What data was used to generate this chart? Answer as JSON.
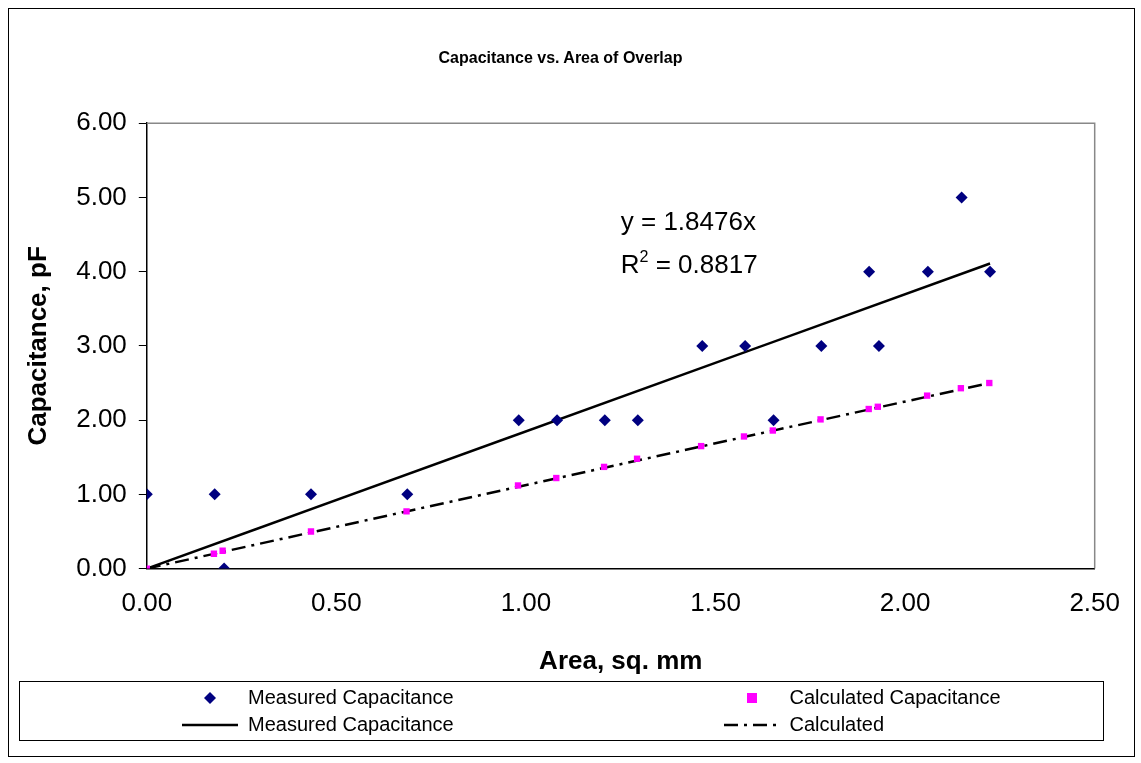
{
  "chart_data": {
    "type": "scatter",
    "title": "Capacitance vs. Area of Overlap",
    "xlabel": "Area, sq. mm",
    "ylabel": "Capacitance, pF",
    "xlim": [
      0,
      2.5
    ],
    "xticks": [
      {
        "value": 0,
        "label": "0.00"
      },
      {
        "value": 0.5,
        "label": "0.50"
      },
      {
        "value": 1,
        "label": "1.00"
      },
      {
        "value": 1.5,
        "label": "1.50"
      },
      {
        "value": 2,
        "label": "2.00"
      },
      {
        "value": 2.5,
        "label": "2.50"
      }
    ],
    "ylim": [
      0,
      6
    ],
    "yticks": [
      {
        "value": 0,
        "label": "0.00"
      },
      {
        "value": 1,
        "label": "1.00"
      },
      {
        "value": 2,
        "label": "2.00"
      },
      {
        "value": 3,
        "label": "3.00"
      },
      {
        "value": 4,
        "label": "4.00"
      },
      {
        "value": 5,
        "label": "5.00"
      },
      {
        "value": 6,
        "label": "6.00"
      }
    ],
    "grid": false,
    "legend": "bottom",
    "annotations": [
      "y = 1.8476x",
      "R$^{2}$ = 0.8817"
    ],
    "series": [
      {
        "name": "Measured Capacitance",
        "type": "scatter",
        "marker": "diamond",
        "color": "#000080",
        "x": [
          0,
          0.179,
          0.204,
          0.433,
          0.687,
          0.981,
          1.082,
          1.208,
          1.295,
          1.465,
          1.578,
          1.653,
          1.779,
          1.905,
          1.931,
          2.06,
          2.149,
          2.224
        ],
        "values": [
          1,
          1,
          0,
          1,
          1,
          2,
          2,
          2,
          2,
          3,
          3,
          2,
          3,
          4,
          3,
          4,
          5,
          4
        ]
      },
      {
        "name": "Calculated Capacitance",
        "type": "scatter",
        "marker": "square",
        "color": "#ff00ff",
        "x": [
          0,
          0.177,
          0.2,
          0.433,
          0.685,
          0.979,
          1.08,
          1.206,
          1.293,
          1.462,
          1.575,
          1.651,
          1.777,
          1.904,
          1.928,
          2.058,
          2.147,
          2.222
        ],
        "values": [
          0,
          0.2,
          0.24,
          0.5,
          0.77,
          1.12,
          1.22,
          1.37,
          1.48,
          1.65,
          1.78,
          1.86,
          2.01,
          2.15,
          2.18,
          2.33,
          2.43,
          2.5
        ]
      },
      {
        "name": "Measured Capacitance",
        "type": "line",
        "marker": "none",
        "line_style": "solid",
        "color": "#000000",
        "x": [
          0,
          2.224
        ],
        "values": [
          0,
          4.11
        ]
      },
      {
        "name": "Calculated",
        "type": "line",
        "marker": "none",
        "line_style": "dashed",
        "color": "#000000",
        "x": [
          0,
          2.222
        ],
        "values": [
          0,
          2.5
        ]
      }
    ]
  }
}
